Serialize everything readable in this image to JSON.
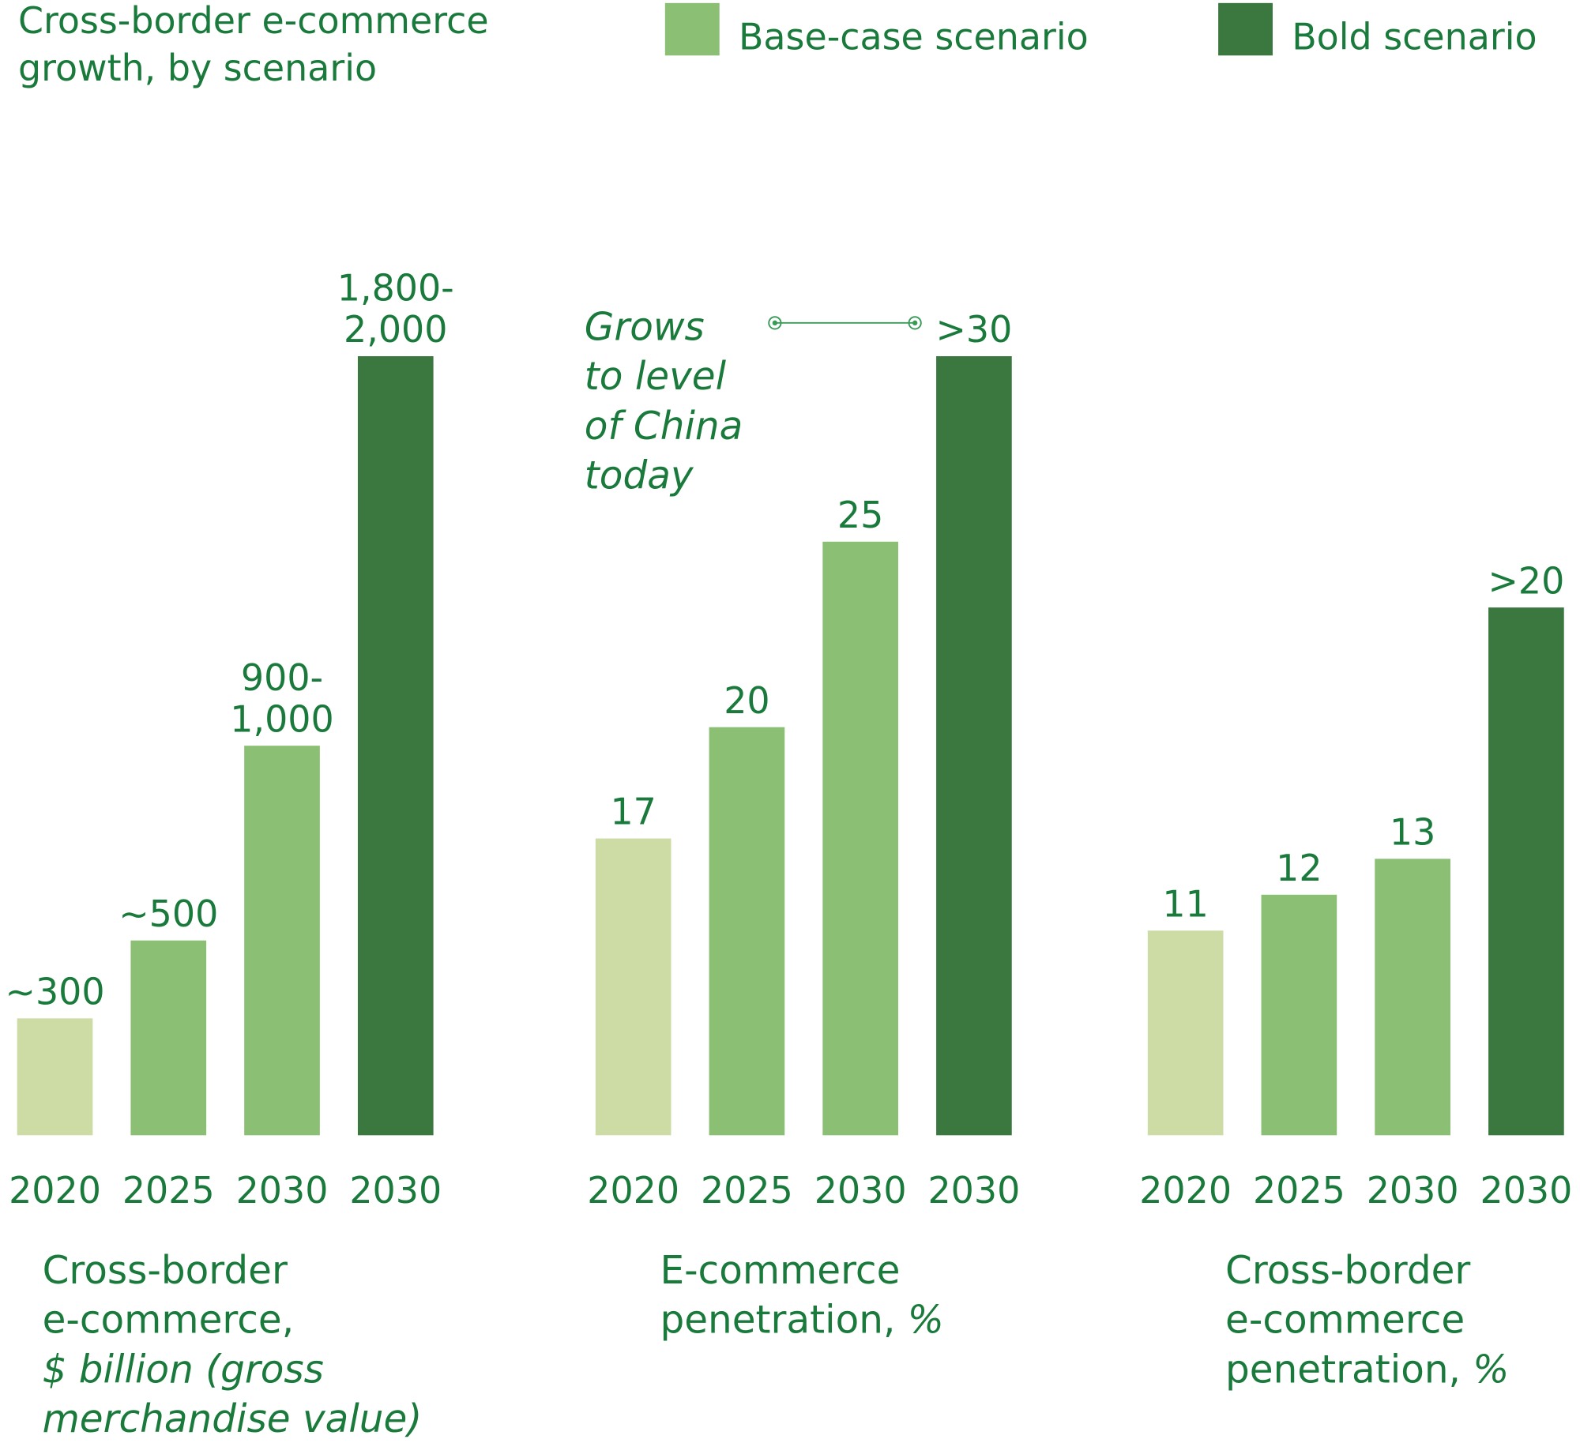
{
  "title": [
    "Cross-border e-commerce",
    "growth, by scenario"
  ],
  "legend": [
    {
      "name": "Base-case scenario",
      "color": "#8bbf74"
    },
    {
      "name": "Bold scenario",
      "color": "#3a7840"
    }
  ],
  "annotation": [
    "Grows",
    "to level",
    "of China",
    "today"
  ],
  "charts": [
    {
      "type": "bar",
      "categories": [
        "2020",
        "2025",
        "2030",
        "2030"
      ],
      "values": [
        300,
        500,
        1000,
        2000
      ],
      "value_labels": [
        "~300",
        "~500",
        "900-1,000",
        "1,800-2,000"
      ],
      "colors": [
        "#cddba5",
        "#8bbf74",
        "#8bbf74",
        "#3a7840"
      ],
      "ylim": [
        0,
        2000
      ],
      "caption": [
        [
          {
            "text": "Cross-border",
            "italic": false
          }
        ],
        [
          {
            "text": "e-commerce,",
            "italic": false
          }
        ],
        [
          {
            "text": "$ billion (gross",
            "italic": true
          }
        ],
        [
          {
            "text": "merchandise value)",
            "italic": true
          }
        ]
      ]
    },
    {
      "type": "bar",
      "categories": [
        "2020",
        "2025",
        "2030",
        "2030"
      ],
      "values": [
        17,
        20,
        25,
        30
      ],
      "value_labels": [
        "17",
        "20",
        "25",
        ">30"
      ],
      "colors": [
        "#cddba5",
        "#8bbf74",
        "#8bbf74",
        "#3a7840"
      ],
      "ylim": [
        9,
        30
      ],
      "caption": [
        [
          {
            "text": "E-commerce",
            "italic": false
          }
        ],
        [
          {
            "text": "penetration,",
            "italic": false
          },
          {
            "text": "%",
            "italic": true
          }
        ]
      ]
    },
    {
      "type": "bar",
      "categories": [
        "2020",
        "2025",
        "2030",
        "2030"
      ],
      "values": [
        11,
        12,
        13,
        20
      ],
      "value_labels": [
        "11",
        "12",
        "13",
        ">20"
      ],
      "colors": [
        "#cddba5",
        "#8bbf74",
        "#8bbf74",
        "#3a7840"
      ],
      "ylim": [
        5.3,
        27
      ],
      "caption": [
        [
          {
            "text": "Cross-border",
            "italic": false
          }
        ],
        [
          {
            "text": "e-commerce",
            "italic": false
          }
        ],
        [
          {
            "text": "penetration,",
            "italic": false
          },
          {
            "text": "%",
            "italic": true
          }
        ]
      ]
    }
  ]
}
